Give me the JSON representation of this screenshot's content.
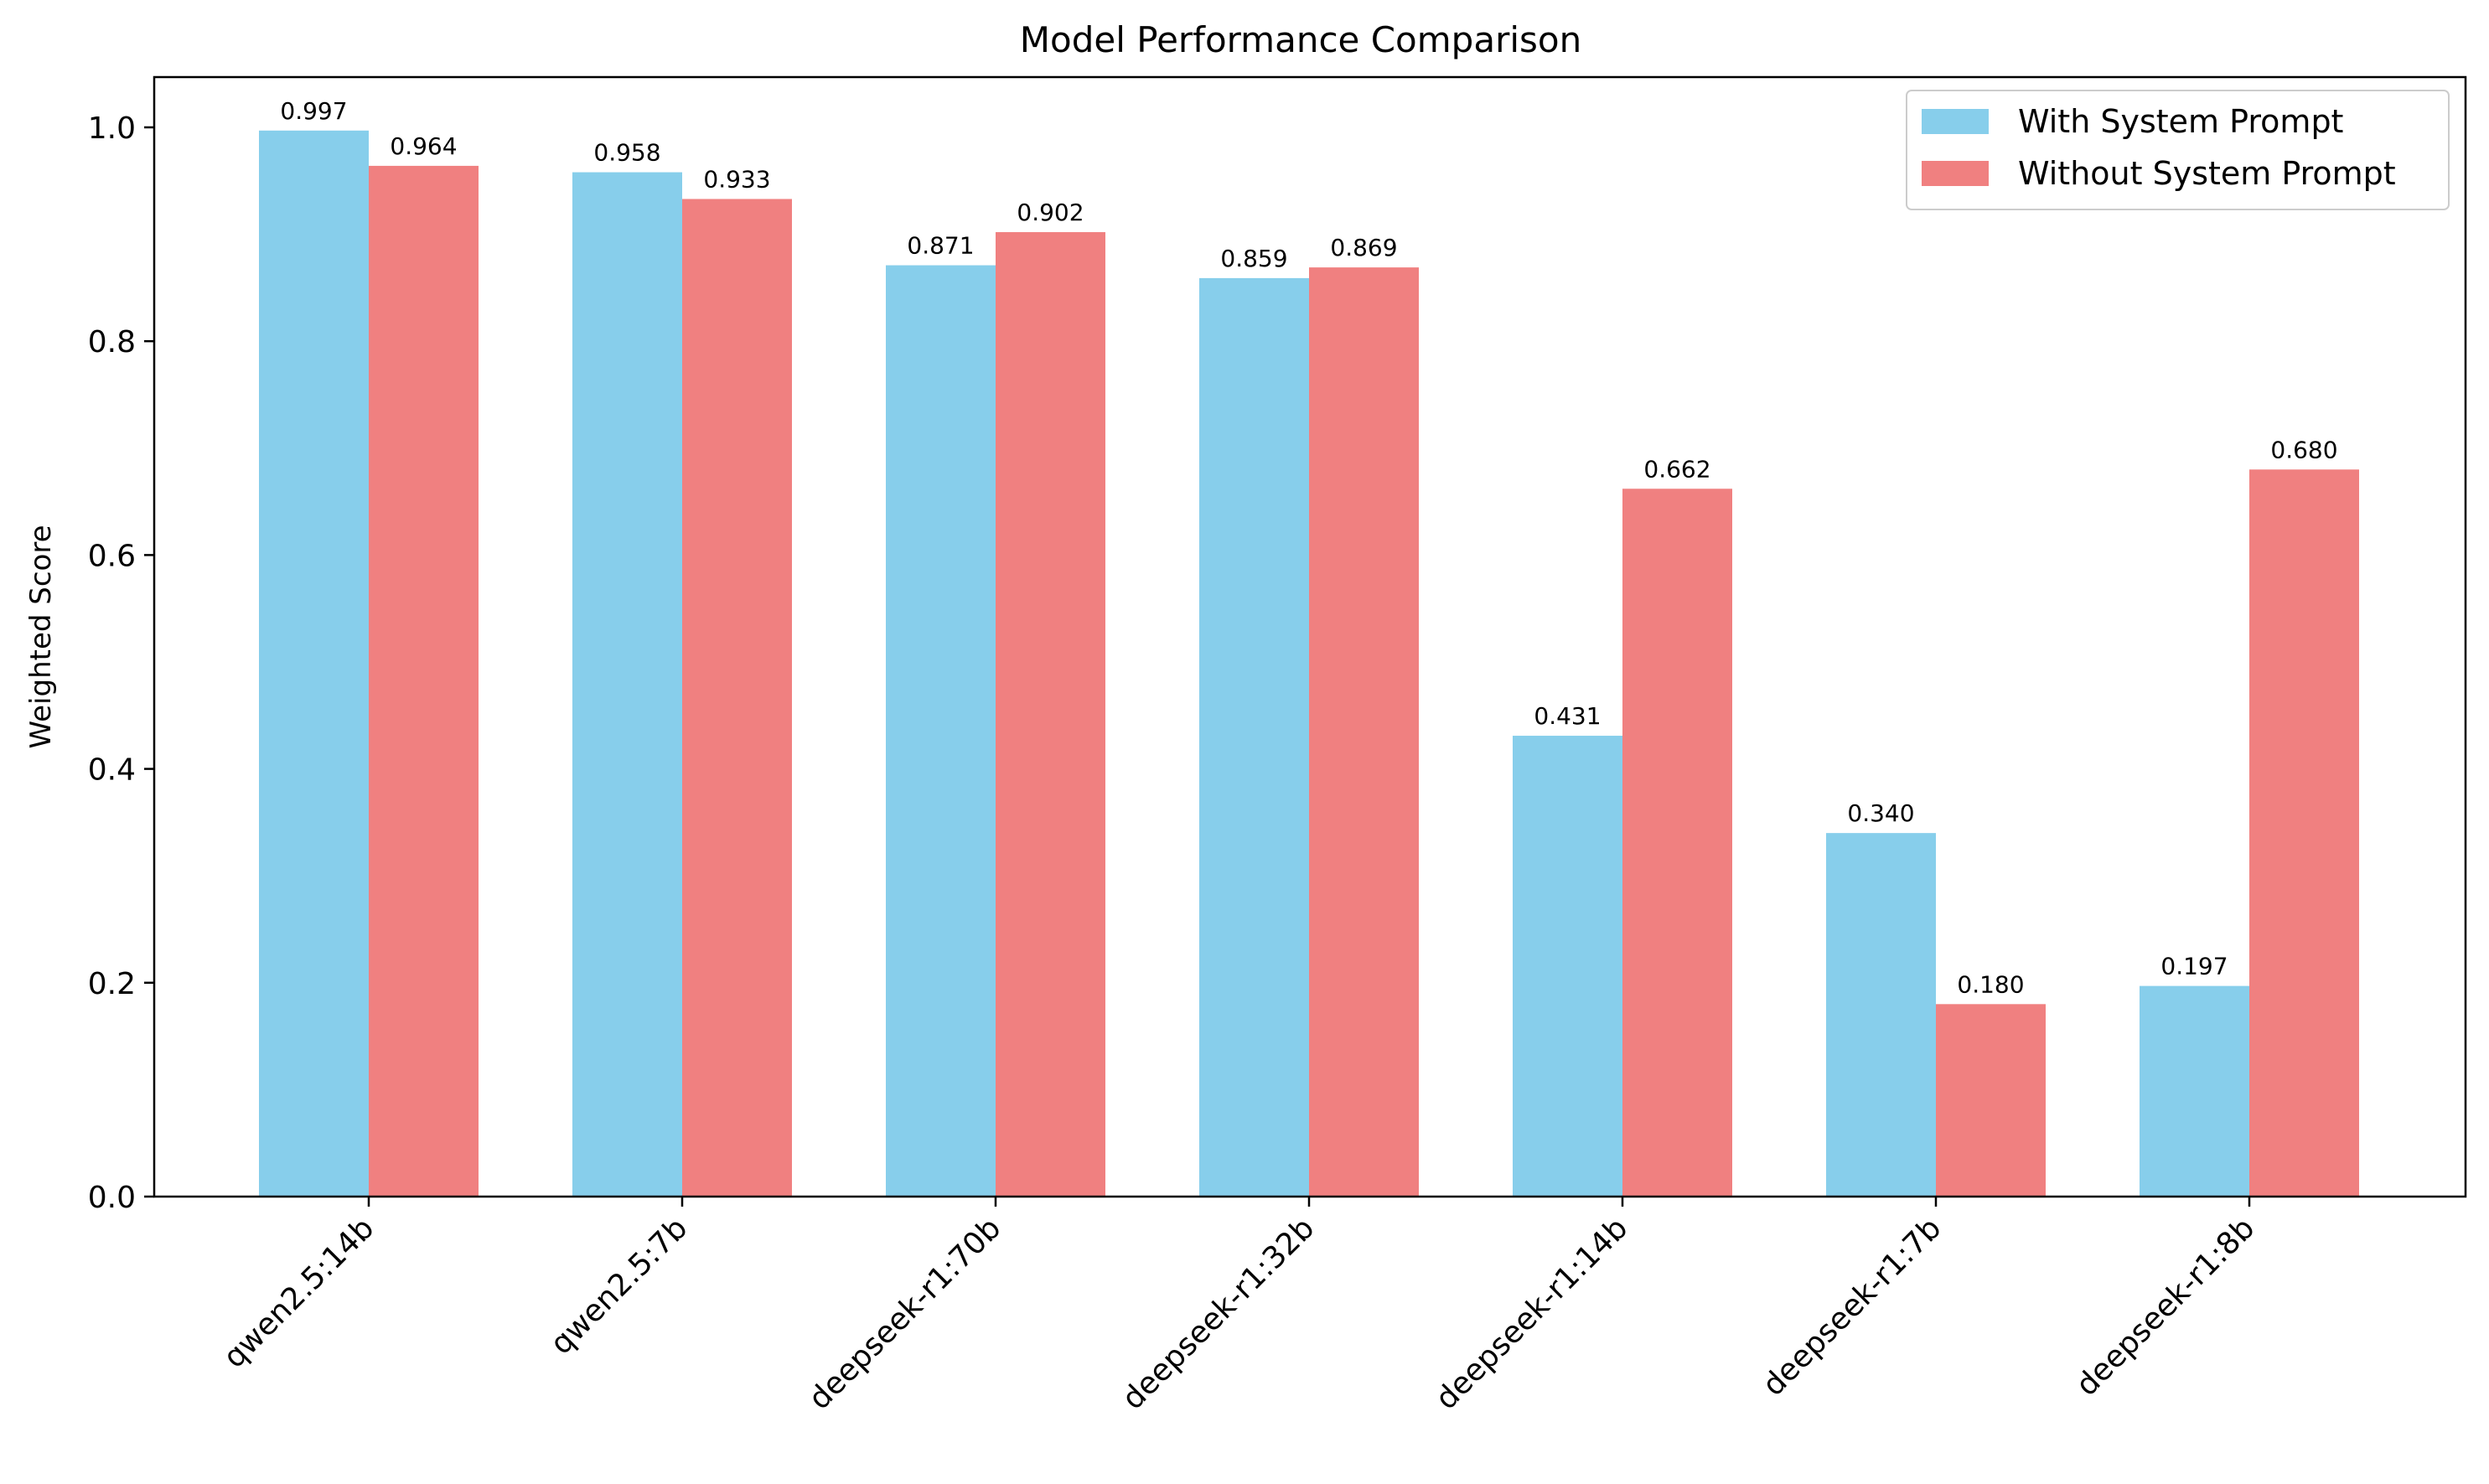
{
  "chart_data": {
    "type": "bar",
    "title": "Model Performance Comparison",
    "xlabel": "",
    "ylabel": "Weighted Score",
    "ylim": [
      0,
      1.047
    ],
    "yticks": [
      "0.0",
      "0.2",
      "0.4",
      "0.6",
      "0.8",
      "1.0"
    ],
    "categories": [
      "qwen2.5:14b",
      "qwen2.5:7b",
      "deepseek-r1:70b",
      "deepseek-r1:32b",
      "deepseek-r1:14b",
      "deepseek-r1:7b",
      "deepseek-r1:8b"
    ],
    "series": [
      {
        "name": "With System Prompt",
        "color": "#87CEEB",
        "values": [
          0.997,
          0.958,
          0.871,
          0.859,
          0.431,
          0.34,
          0.197
        ],
        "labels": [
          "0.997",
          "0.958",
          "0.871",
          "0.859",
          "0.431",
          "0.340",
          "0.197"
        ]
      },
      {
        "name": "Without System Prompt",
        "color": "#F08080",
        "values": [
          0.964,
          0.933,
          0.902,
          0.869,
          0.662,
          0.18,
          0.68
        ],
        "labels": [
          "0.964",
          "0.933",
          "0.902",
          "0.869",
          "0.662",
          "0.180",
          "0.680"
        ]
      }
    ],
    "grid": false,
    "legend_position": "top-right"
  }
}
